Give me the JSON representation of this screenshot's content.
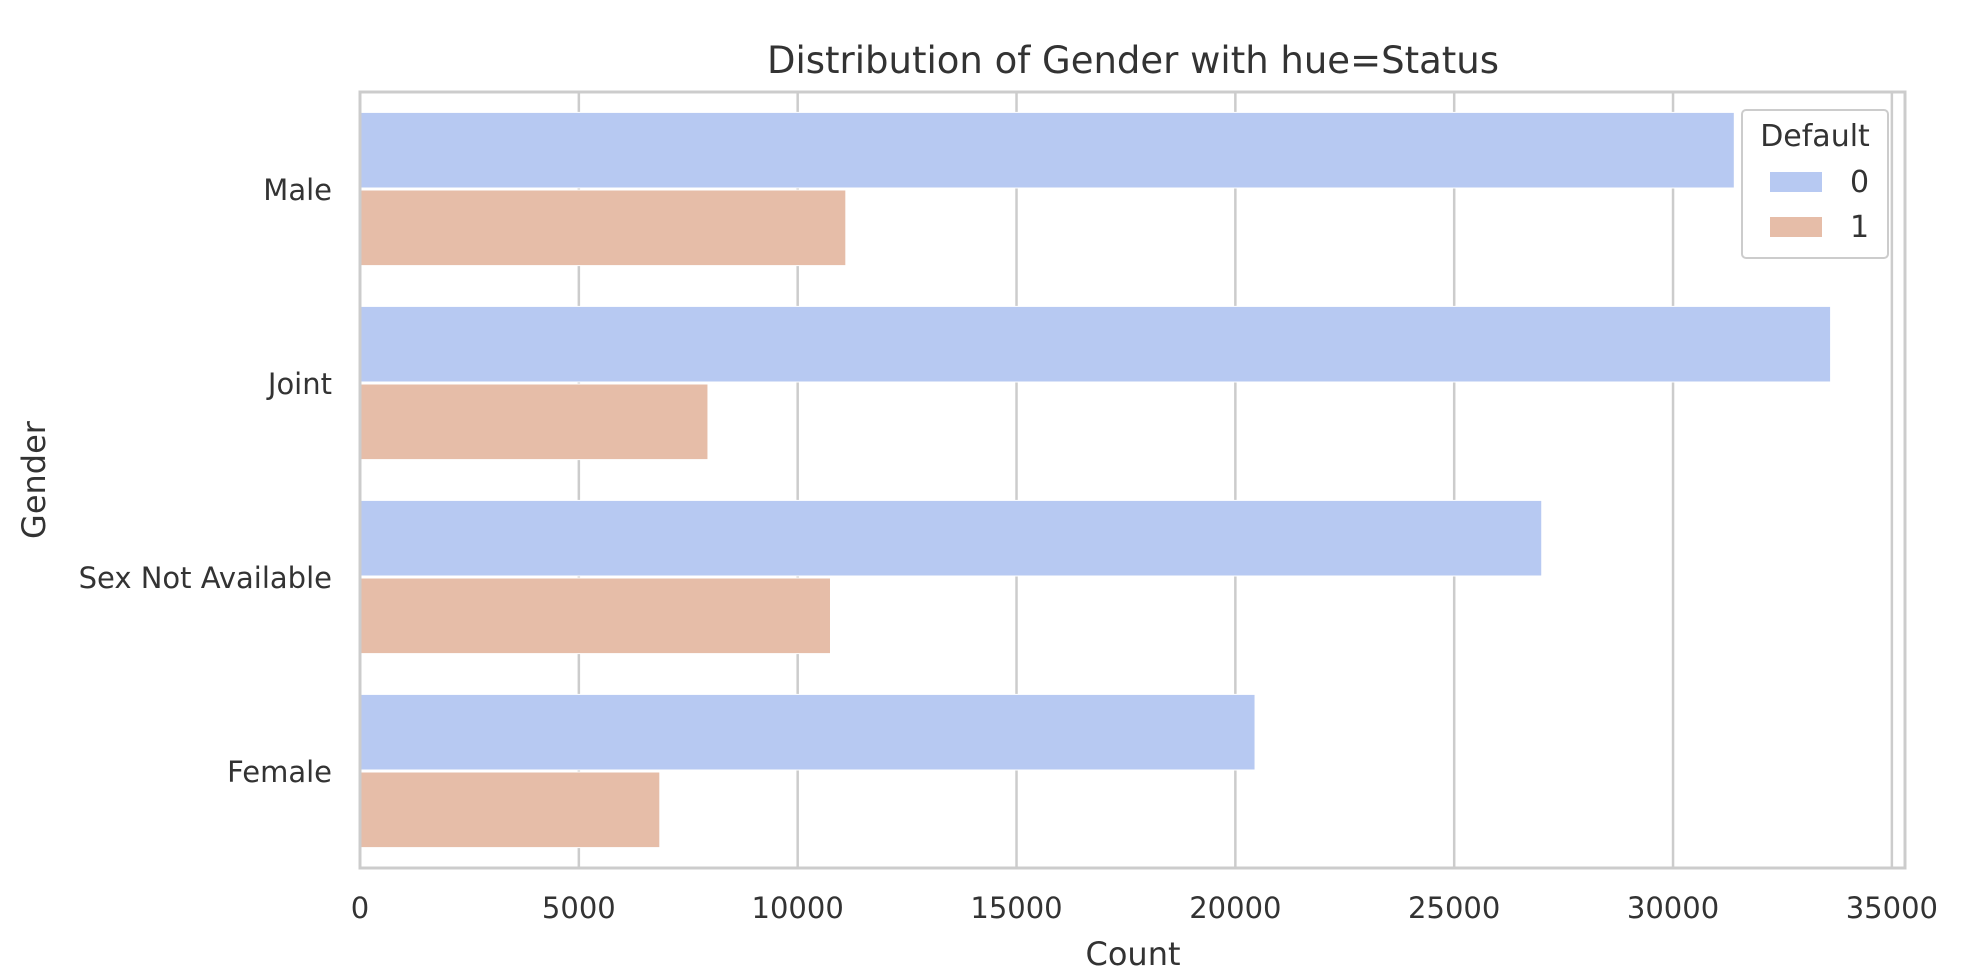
{
  "chart_data": {
    "type": "bar",
    "orientation": "horizontal",
    "title": "Distribution of Gender with hue=Status",
    "xlabel": "Count",
    "ylabel": "Gender",
    "categories": [
      "Male",
      "Joint",
      "Sex Not Available",
      "Female"
    ],
    "xlim": [
      0,
      35300
    ],
    "xticks": [
      0,
      5000,
      10000,
      15000,
      20000,
      25000,
      30000,
      35000
    ],
    "grid": "vertical",
    "legend": {
      "title": "Default",
      "placement": "top-right"
    },
    "series": [
      {
        "name": "0",
        "color": "#b7c9f2",
        "values": [
          31400,
          33600,
          27000,
          20450
        ]
      },
      {
        "name": "1",
        "color": "#e6bda8",
        "values": [
          11100,
          7950,
          10750,
          6850
        ]
      }
    ]
  }
}
